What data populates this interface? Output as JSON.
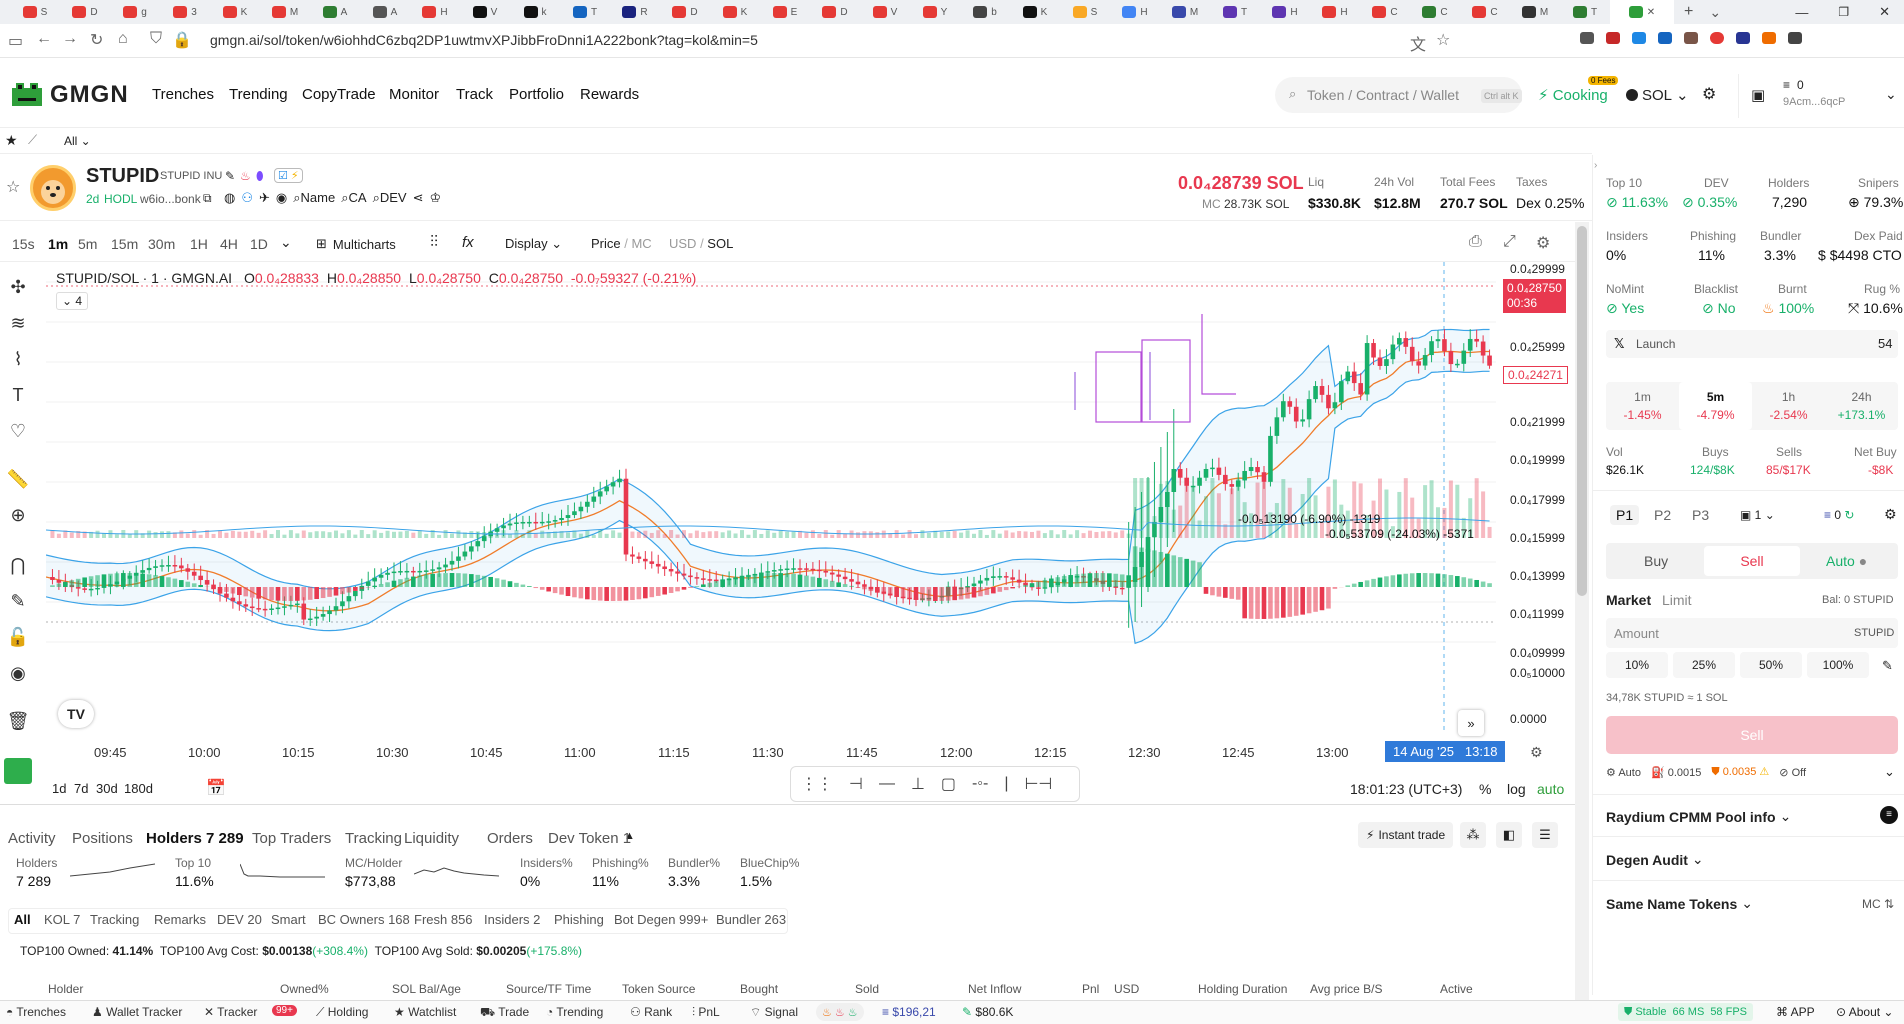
{
  "browser": {
    "tabs": [
      {
        "label": "S",
        "color": "#e53935"
      },
      {
        "label": "D",
        "color": "#e53935"
      },
      {
        "label": "g",
        "color": "#e53935"
      },
      {
        "label": "3",
        "color": "#e53935"
      },
      {
        "label": "K",
        "color": "#e53935"
      },
      {
        "label": "M",
        "color": "#e53935"
      },
      {
        "label": "A",
        "color": "#2e7d32"
      },
      {
        "label": "A",
        "color": "#555"
      },
      {
        "label": "H",
        "color": "#e53935"
      },
      {
        "label": "V",
        "color": "#111"
      },
      {
        "label": "k",
        "color": "#111"
      },
      {
        "label": "T",
        "color": "#1565c0"
      },
      {
        "label": "R",
        "color": "#1a237e"
      },
      {
        "label": "D",
        "color": "#e53935"
      },
      {
        "label": "K",
        "color": "#e53935"
      },
      {
        "label": "E",
        "color": "#e53935"
      },
      {
        "label": "D",
        "color": "#e53935"
      },
      {
        "label": "V",
        "color": "#e53935"
      },
      {
        "label": "Y",
        "color": "#e53935"
      },
      {
        "label": "b",
        "color": "#444"
      },
      {
        "label": "K",
        "color": "#111"
      },
      {
        "label": "S",
        "color": "#f9a825"
      },
      {
        "label": "H",
        "color": "#4285f4"
      },
      {
        "label": "M",
        "color": "#3949ab"
      },
      {
        "label": "T",
        "color": "#5e35b1"
      },
      {
        "label": "H",
        "color": "#5e35b1"
      },
      {
        "label": "H",
        "color": "#e53935"
      },
      {
        "label": "C",
        "color": "#e53935"
      },
      {
        "label": "C",
        "color": "#2e7d32"
      },
      {
        "label": "C",
        "color": "#e53935"
      },
      {
        "label": "M",
        "color": "#333"
      },
      {
        "label": "T",
        "color": "#2e7d32"
      }
    ],
    "url": "gmgn.ai/sol/token/w6iohhdC6zbq2DP1uwtmvXPJibbFroDnni1A222bonk?tag=kol&min=5"
  },
  "header": {
    "logo": "GMGN",
    "nav": [
      "Trenches",
      "Trending",
      "CopyTrade",
      "Monitor",
      "Track",
      "Portfolio",
      "Rewards"
    ],
    "search_placeholder": "Token / Contract / Wallet",
    "search_hint": "Ctrl alt K",
    "cooking": "Cooking",
    "fees_badge": "0 Fees",
    "chain": "SOL",
    "wallet_balance": "0",
    "wallet_addr": "9Acm...6qcP"
  },
  "subbar": {
    "filter": "All"
  },
  "token": {
    "symbol": "STUPID",
    "name": "STUPID INU",
    "age": "2d",
    "hodl": "HODL",
    "addr": "w6io...bonk",
    "links": [
      "Name",
      "CA",
      "DEV"
    ],
    "price": "0.0₄28739 SOL",
    "mc_label": "MC",
    "mc": "28.73K SOL",
    "liq_label": "Liq",
    "liq": "$330.8K",
    "vol_label": "24h Vol",
    "vol": "$12.8M",
    "fees_label": "Total Fees",
    "fees": "270.7 SOL",
    "taxes_label": "Taxes",
    "taxes": "Dex 0.25%"
  },
  "chart_toolbar": {
    "timeframes": [
      "15s",
      "1m",
      "5m",
      "15m",
      "30m",
      "1H",
      "4H",
      "1D"
    ],
    "active_tf": "1m",
    "multicharts": "Multicharts",
    "display": "Display",
    "price_mc_a": "Price",
    "price_mc_b": "MC",
    "usd_sol_a": "USD",
    "usd_sol_b": "SOL"
  },
  "chart_legend": {
    "title": "STUPID/SOL · 1 · GMGN.AI",
    "o": "0.0₄28833",
    "h": "0.0₄28850",
    "l": "0.0₄28750",
    "c": "0.0₄28750",
    "chg": "-0.0₇59327 (-0.21%)",
    "collapse_count": "4"
  },
  "chart_data": {
    "type": "candlestick",
    "title": "STUPID/SOL · 1 · GMGN.AI",
    "x_ticks": [
      "09:45",
      "10:00",
      "10:15",
      "10:30",
      "10:45",
      "11:00",
      "11:15",
      "11:30",
      "11:45",
      "12:00",
      "12:15",
      "12:30",
      "12:45",
      "13:00",
      "13:18"
    ],
    "y_ticks": [
      "0.0₄29999",
      "0.0₄25999",
      "0.0₄21999",
      "0.0₄19999",
      "0.0₄17999",
      "0.0₄15999",
      "0.0₄13999",
      "0.0₄11999",
      "0.0₄09999",
      "0.0₅10000",
      "0.0000"
    ],
    "current_price_label": "0.0₄28750",
    "countdown": "00:36",
    "sub_price_label": "0.0₄24271",
    "crosshair_date": "14 Aug '25",
    "crosshair_time": "13:18",
    "annotations": [
      "-0.0₅13190 (-6.90%) -1319",
      "-0.0₅53709 (-24.03%) -5371"
    ],
    "ylim": [
      9e-06,
      3e-05
    ]
  },
  "chart_footer": {
    "ranges": [
      "1d",
      "7d",
      "30d",
      "180d"
    ],
    "clock": "18:01:23 (UTC+3)",
    "pct": "%",
    "log": "log",
    "auto": "auto"
  },
  "bottom_tabs": [
    "Activity",
    "Positions",
    "Holders 7 289",
    "Top Traders",
    "Tracking",
    "Liquidity",
    "Orders",
    "Dev Token 1"
  ],
  "active_bottom_tab": "Holders 7 289",
  "instant_trade": "Instant trade",
  "holder_stats": [
    {
      "label": "Holders",
      "value": "7 289"
    },
    {
      "label": "Top 10",
      "value": "11.6%"
    },
    {
      "label": "MC/Holder",
      "value": "$773,88"
    },
    {
      "label": "Insiders%",
      "value": "0%"
    },
    {
      "label": "Phishing%",
      "value": "11%"
    },
    {
      "label": "Bundler%",
      "value": "3.3%"
    },
    {
      "label": "BlueChip%",
      "value": "1.5%"
    }
  ],
  "holder_filters": [
    "All",
    "KOL 7",
    "Tracking",
    "Remarks",
    "DEV 20",
    "Smart",
    "BC Owners 168",
    "Fresh 856",
    "Insiders 2",
    "Phishing",
    "Bot Degen 999+",
    "Bundler 263"
  ],
  "top100": {
    "owned_label": "TOP100 Owned:",
    "owned": "41.14%",
    "cost_label": "TOP100 Avg Cost:",
    "cost": "$0.00138",
    "cost_chg": "(+308.4%)",
    "sold_label": "TOP100 Avg Sold:",
    "sold": "$0.00205",
    "sold_chg": "(+175.8%)"
  },
  "table_headers": [
    "Holder",
    "Owned%",
    "SOL Bal/Age",
    "Source/TF Time",
    "Token Source",
    "Bought",
    "Sold",
    "Net Inflow",
    "Pnl",
    "USD",
    "Holding Duration",
    "Avg price B/S",
    "Active"
  ],
  "right": {
    "top10_label": "Top 10",
    "top10": "11.63%",
    "dev_label": "DEV",
    "dev": "0.35%",
    "holders_label": "Holders",
    "holders": "7,290",
    "snipers_label": "Snipers",
    "snipers": "79.3%",
    "insiders_label": "Insiders",
    "insiders": "0%",
    "phishing_label": "Phishing",
    "phishing": "11%",
    "bundler_label": "Bundler",
    "bundler": "3.3%",
    "dexpaid_label": "Dex Paid",
    "dexpaid": "$4498 CTO",
    "nomint_label": "NoMint",
    "nomint": "Yes",
    "blacklist_label": "Blacklist",
    "blacklist": "No",
    "burnt_label": "Burnt",
    "burnt": "100%",
    "rug_label": "Rug %",
    "rug": "10.6%",
    "x_launch": "Launch",
    "x_count": "54",
    "periods": [
      {
        "label": "1m",
        "value": "-1.45%"
      },
      {
        "label": "5m",
        "value": "-4.79%"
      },
      {
        "label": "1h",
        "value": "-2.54%"
      },
      {
        "label": "24h",
        "value": "+173.1%"
      }
    ],
    "vol_label": "Vol",
    "vol": "$26.1K",
    "buys_label": "Buys",
    "buys": "124/$8K",
    "sells_label": "Sells",
    "sells": "85/$17K",
    "netbuy_label": "Net Buy",
    "netbuy": "-$8K",
    "presets": [
      "P1",
      "P2",
      "P3"
    ],
    "preset_count": "1",
    "preset_zero": "0",
    "buy": "Buy",
    "sell": "Sell",
    "auto": "Auto",
    "market": "Market",
    "limit": "Limit",
    "bal": "Bal: 0 STUPID",
    "amount_placeholder": "Amount",
    "amount_unit": "STUPID",
    "pcts": [
      "10%",
      "25%",
      "50%",
      "100%"
    ],
    "rate": "34,78K STUPID ≈ 1 SOL",
    "sell_btn": "Sell",
    "auto_opt": "Auto",
    "fee1": "0.0015",
    "fee2": "0.0035",
    "off": "Off",
    "sections": [
      "Raydium CPMM Pool info",
      "Degen Audit",
      "Same Name Tokens"
    ],
    "mc_label": "MC"
  },
  "footer": {
    "items": [
      "Trenches",
      "Wallet Tracker",
      "Tracker",
      "Holding",
      "Watchlist",
      "Trade",
      "Trending",
      "Rank",
      "PnL",
      "Signal"
    ],
    "tracker_badge": "99+",
    "bal1": "$196,21",
    "bal2": "$80.6K",
    "status": "Stable",
    "ms": "66 MS",
    "fps": "58 FPS",
    "app": "APP",
    "about": "About"
  },
  "colors": {
    "up": "#18b06a",
    "down": "#e8384f",
    "bb": "#3ba3e8",
    "ma": "#f07c2a",
    "sel": "#b44dd9"
  }
}
